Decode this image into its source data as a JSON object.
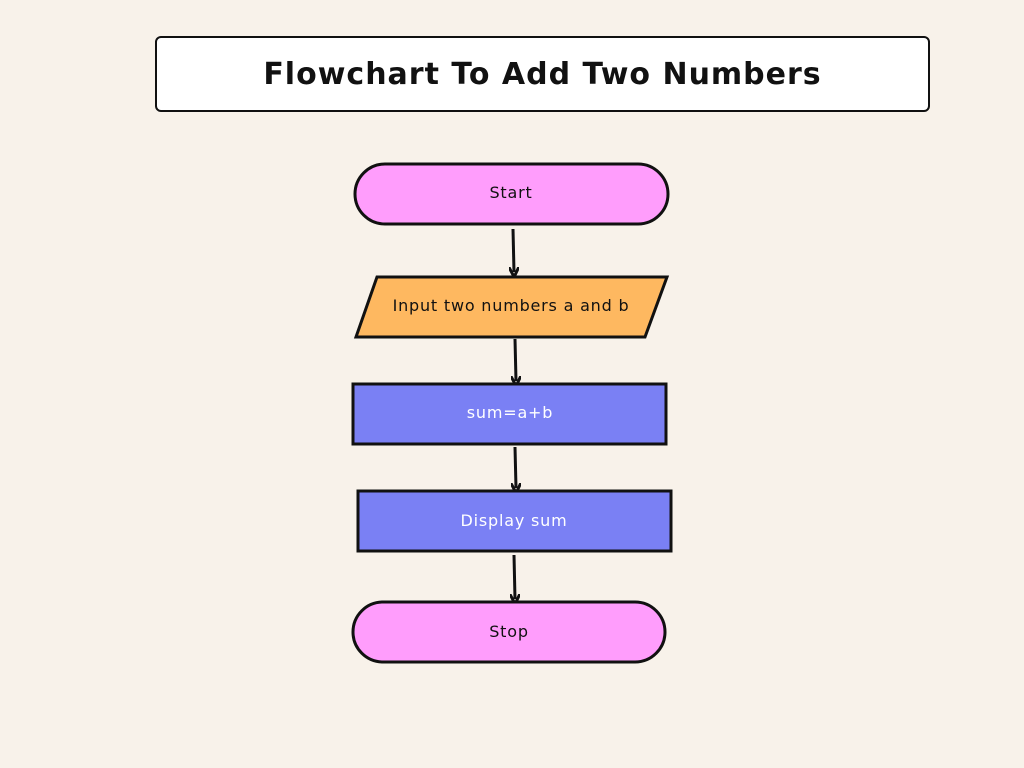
{
  "title": "Flowchart To Add Two Numbers",
  "colors": {
    "background": "#f8f2ea",
    "terminal": "#ff9dfc",
    "io": "#feb860",
    "process": "#7a80f4",
    "stroke": "#111111"
  },
  "nodes": {
    "start": {
      "label": "Start",
      "shape": "terminal"
    },
    "input": {
      "label": "Input two numbers a and b",
      "shape": "parallelogram"
    },
    "process": {
      "label": "sum=a+b",
      "shape": "rectangle"
    },
    "display": {
      "label": "Display sum",
      "shape": "rectangle"
    },
    "stop": {
      "label": "Stop",
      "shape": "terminal"
    }
  }
}
